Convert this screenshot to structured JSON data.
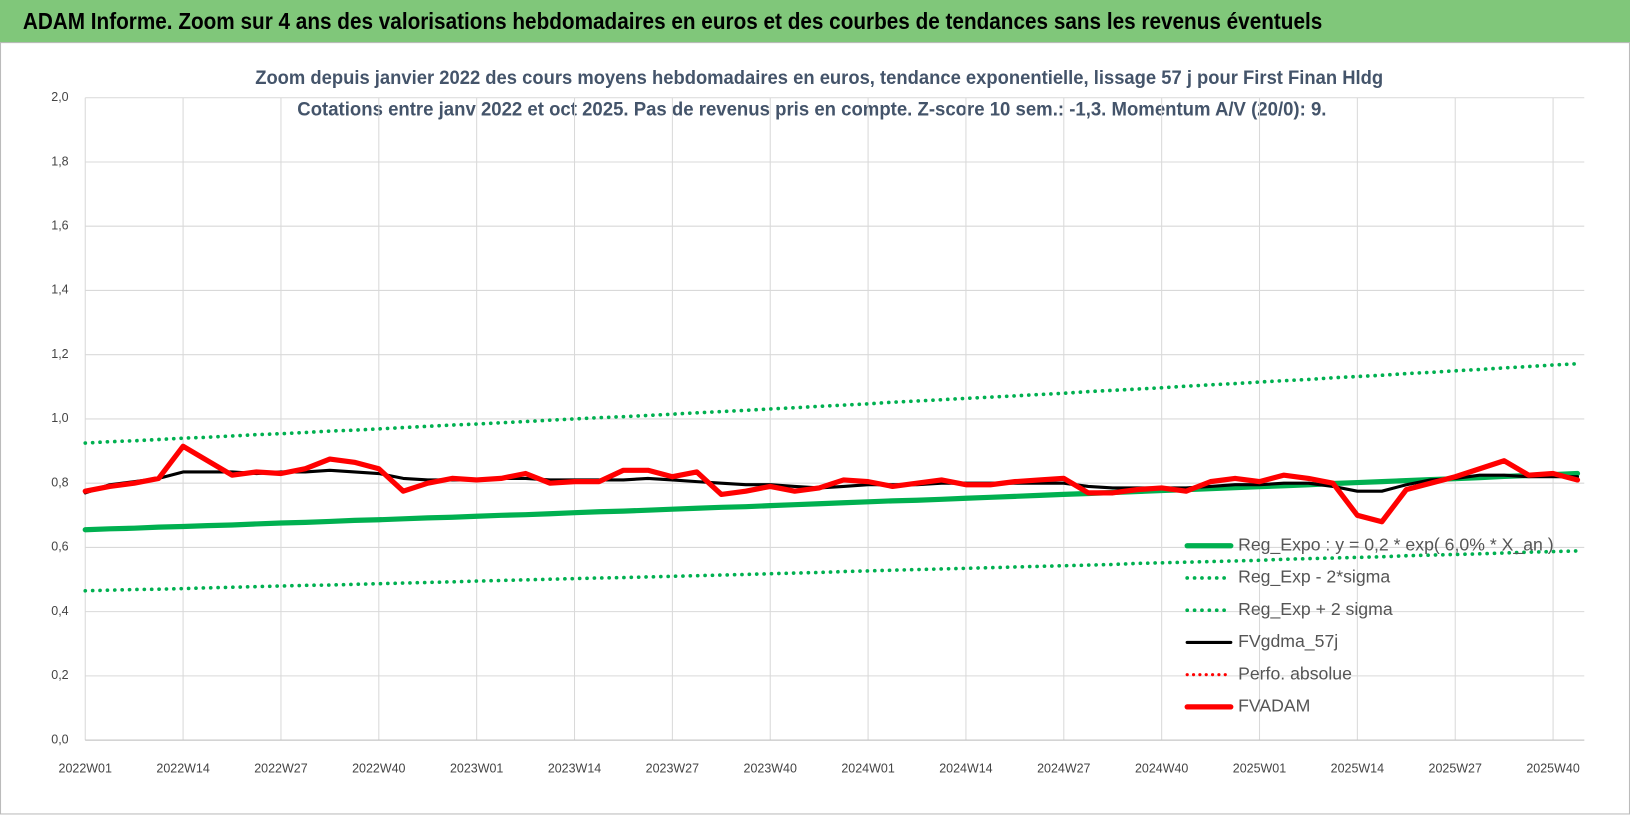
{
  "header": {
    "title": "ADAM Informe. Zoom sur 4 ans des valorisations hebdomadaires en euros et des courbes de tendances sans les revenus éventuels"
  },
  "chart_data": {
    "type": "line",
    "title": "Zoom depuis janvier 2022 des cours moyens hebdomadaires en euros, tendance exponentielle, lissage 57 j pour First Finan Hldg",
    "subtitle": "Cotations entre janv 2022 et oct 2025. Pas de revenus pris en compte. Z-score 10 sem.: -1,3.  Momentum A/V (20/0): 9.",
    "categories": [
      "2022W01",
      null,
      null,
      null,
      "2022W14",
      null,
      null,
      null,
      "2022W27",
      null,
      null,
      null,
      "2022W40",
      null,
      null,
      null,
      "2023W01",
      null,
      null,
      null,
      "2023W14",
      null,
      null,
      null,
      "2023W27",
      null,
      null,
      null,
      "2023W40",
      null,
      null,
      null,
      "2024W01",
      null,
      null,
      null,
      "2024W14",
      null,
      null,
      null,
      "2024W27",
      null,
      null,
      null,
      "2024W40",
      null,
      null,
      null,
      "2025W01",
      null,
      null,
      null,
      "2025W14",
      null,
      null,
      null,
      "2025W27",
      null,
      null,
      null,
      "2025W40",
      null
    ],
    "ylim": [
      0,
      2
    ],
    "yticks": [
      {
        "value": 0,
        "label": "0,0"
      },
      {
        "value": 0.2,
        "label": "0,2"
      },
      {
        "value": 0.4,
        "label": "0,4"
      },
      {
        "value": 0.6,
        "label": "0,6"
      },
      {
        "value": 0.8,
        "label": "0,8"
      },
      {
        "value": 1,
        "label": "1,0"
      },
      {
        "value": 1.2,
        "label": "1,2"
      },
      {
        "value": 1.4,
        "label": "1,4"
      },
      {
        "value": 1.6,
        "label": "1,6"
      },
      {
        "value": 1.8,
        "label": "1,8"
      },
      {
        "value": 2,
        "label": "2,0"
      }
    ],
    "grid": true,
    "legend": "lower right",
    "series": [
      {
        "name": "Reg_Expo : y = 0,2 * exp( 6,0% *  X_an )",
        "color": "#00b050",
        "line_style": "solid",
        "line_width": 5,
        "values": [
          0.655,
          0.658,
          0.66,
          0.663,
          0.665,
          0.668,
          0.67,
          0.673,
          0.676,
          0.678,
          0.681,
          0.684,
          0.686,
          0.689,
          0.692,
          0.694,
          0.697,
          0.7,
          0.702,
          0.705,
          0.708,
          0.711,
          0.713,
          0.716,
          0.719,
          0.722,
          0.725,
          0.727,
          0.73,
          0.733,
          0.736,
          0.739,
          0.742,
          0.745,
          0.747,
          0.75,
          0.753,
          0.756,
          0.759,
          0.762,
          0.765,
          0.768,
          0.771,
          0.774,
          0.777,
          0.78,
          0.783,
          0.786,
          0.789,
          0.792,
          0.795,
          0.799,
          0.802,
          0.805,
          0.808,
          0.811,
          0.814,
          0.817,
          0.821,
          0.824,
          0.827,
          0.83
        ]
      },
      {
        "name": "Reg_Exp - 2*sigma",
        "color": "#00b050",
        "line_style": "dotted",
        "line_width": 3.5,
        "values": [
          0.465,
          0.467,
          0.469,
          0.47,
          0.472,
          0.474,
          0.476,
          0.478,
          0.48,
          0.482,
          0.483,
          0.485,
          0.487,
          0.489,
          0.491,
          0.493,
          0.495,
          0.497,
          0.499,
          0.501,
          0.503,
          0.505,
          0.506,
          0.508,
          0.51,
          0.512,
          0.514,
          0.516,
          0.518,
          0.52,
          0.522,
          0.525,
          0.527,
          0.529,
          0.531,
          0.533,
          0.535,
          0.537,
          0.539,
          0.541,
          0.543,
          0.545,
          0.547,
          0.55,
          0.552,
          0.554,
          0.556,
          0.558,
          0.56,
          0.563,
          0.565,
          0.567,
          0.569,
          0.571,
          0.574,
          0.576,
          0.578,
          0.58,
          0.583,
          0.585,
          0.587,
          0.589
        ]
      },
      {
        "name": "Reg_Exp + 2 sigma",
        "color": "#00b050",
        "line_style": "dotted",
        "line_width": 3.5,
        "values": [
          0.925,
          0.929,
          0.932,
          0.936,
          0.94,
          0.943,
          0.947,
          0.951,
          0.954,
          0.958,
          0.962,
          0.965,
          0.969,
          0.973,
          0.977,
          0.981,
          0.984,
          0.988,
          0.992,
          0.996,
          1.0,
          1.004,
          1.007,
          1.011,
          1.015,
          1.019,
          1.023,
          1.027,
          1.031,
          1.035,
          1.039,
          1.043,
          1.047,
          1.052,
          1.056,
          1.06,
          1.064,
          1.068,
          1.072,
          1.076,
          1.08,
          1.085,
          1.089,
          1.093,
          1.097,
          1.102,
          1.106,
          1.11,
          1.115,
          1.119,
          1.123,
          1.128,
          1.132,
          1.136,
          1.141,
          1.145,
          1.15,
          1.154,
          1.159,
          1.163,
          1.168,
          1.172
        ]
      },
      {
        "name": "FVgdma_57j",
        "color": "#000000",
        "line_style": "solid",
        "line_width": 3,
        "values": [
          0.77,
          0.795,
          0.805,
          0.815,
          0.835,
          0.835,
          0.835,
          0.83,
          0.835,
          0.835,
          0.84,
          0.835,
          0.83,
          0.815,
          0.81,
          0.81,
          0.81,
          0.815,
          0.815,
          0.81,
          0.81,
          0.81,
          0.81,
          0.815,
          0.81,
          0.805,
          0.8,
          0.795,
          0.795,
          0.79,
          0.785,
          0.79,
          0.795,
          0.795,
          0.795,
          0.8,
          0.8,
          0.8,
          0.8,
          0.8,
          0.8,
          0.79,
          0.785,
          0.785,
          0.785,
          0.785,
          0.79,
          0.795,
          0.795,
          0.8,
          0.8,
          0.79,
          0.775,
          0.775,
          0.795,
          0.81,
          0.815,
          0.825,
          0.825,
          0.82,
          0.82,
          0.82
        ]
      },
      {
        "name": "Perfo. absolue",
        "color": "#ff0000",
        "line_style": "dotted",
        "line_width": 3,
        "values": [
          0.775,
          0.79,
          0.8,
          0.815,
          0.915,
          0.87,
          0.825,
          0.835,
          0.83,
          0.845,
          0.875,
          0.865,
          0.845,
          0.775,
          0.8,
          0.815,
          0.81,
          0.815,
          0.83,
          0.8,
          0.805,
          0.805,
          0.84,
          0.84,
          0.82,
          0.835,
          0.765,
          0.775,
          0.79,
          0.775,
          0.785,
          0.81,
          0.805,
          0.79,
          0.8,
          0.81,
          0.795,
          0.795,
          0.805,
          0.81,
          0.815,
          0.77,
          0.77,
          0.78,
          0.785,
          0.775,
          0.805,
          0.815,
          0.805,
          0.825,
          0.815,
          0.8,
          0.7,
          0.68,
          0.78,
          0.8,
          0.82,
          0.845,
          0.87,
          0.825,
          0.83,
          0.81
        ]
      },
      {
        "name": "FVADAM",
        "color": "#ff0000",
        "line_style": "solid",
        "line_width": 5,
        "values": [
          0.775,
          0.79,
          0.8,
          0.815,
          0.915,
          0.87,
          0.825,
          0.835,
          0.83,
          0.845,
          0.875,
          0.865,
          0.845,
          0.775,
          0.8,
          0.815,
          0.81,
          0.815,
          0.83,
          0.8,
          0.805,
          0.805,
          0.84,
          0.84,
          0.82,
          0.835,
          0.765,
          0.775,
          0.79,
          0.775,
          0.785,
          0.81,
          0.805,
          0.79,
          0.8,
          0.81,
          0.795,
          0.795,
          0.805,
          0.81,
          0.815,
          0.77,
          0.77,
          0.78,
          0.785,
          0.775,
          0.805,
          0.815,
          0.805,
          0.825,
          0.815,
          0.8,
          0.7,
          0.68,
          0.78,
          0.8,
          0.82,
          0.845,
          0.87,
          0.825,
          0.83,
          0.81
        ]
      }
    ]
  }
}
